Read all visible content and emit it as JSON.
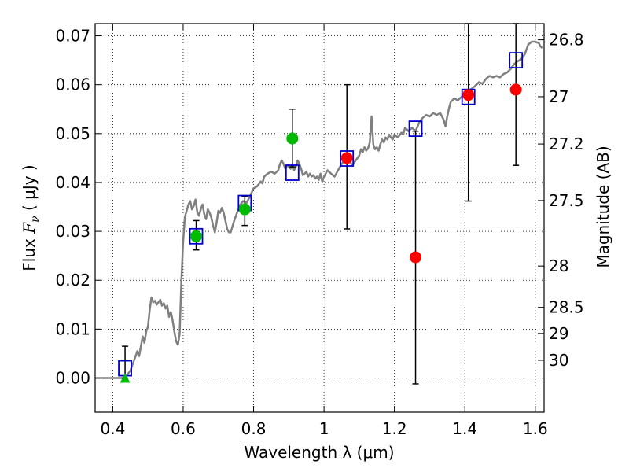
{
  "chart_data": {
    "type": "scatter",
    "title": "",
    "xlabel": "Wavelength  λ (μm)",
    "ylabel": {
      "prefix": "Flux  ",
      "symbol": "F",
      "subscript": "ν",
      "unit": "  ( μJy )"
    },
    "y2label": "Magnitude (AB)",
    "xlim": [
      0.35,
      1.625
    ],
    "ylim": [
      -0.007,
      0.0725
    ],
    "grid": true,
    "x_ticks": [
      0.4,
      0.6,
      0.8,
      1.0,
      1.2,
      1.4,
      1.6
    ],
    "x_tick_labels": [
      "0.4",
      "0.6",
      "0.8",
      "1",
      "1.2",
      "1.4",
      "1.6"
    ],
    "y_ticks": [
      0.0,
      0.01,
      0.02,
      0.03,
      0.04,
      0.05,
      0.06,
      0.07
    ],
    "y_tick_labels": [
      "0.00",
      "0.01",
      "0.02",
      "0.03",
      "0.04",
      "0.05",
      "0.06",
      "0.07"
    ],
    "y2_ticks": [
      {
        "label": "26.8",
        "mag": 26.8
      },
      {
        "label": "27",
        "mag": 27.0
      },
      {
        "label": "27.2",
        "mag": 27.2
      },
      {
        "label": "27.5",
        "mag": 27.5
      },
      {
        "label": "28",
        "mag": 28.0
      },
      {
        "label": "28.5",
        "mag": 28.5
      },
      {
        "label": "29",
        "mag": 29.0
      },
      {
        "label": "30",
        "mag": 30.0
      }
    ],
    "colors": {
      "model_sed": "#808080",
      "detections": "#ff0000",
      "detections_alt": "#00bb00",
      "model_bands": "#0000cc",
      "errorbars": "#000000",
      "grid": "#000000",
      "zero_line": "#555555"
    },
    "series": [
      {
        "type": "line",
        "points": [
          [
            0.35,
            0.0
          ],
          [
            0.43,
            0.0
          ],
          [
            0.44,
            0.0005
          ],
          [
            0.45,
            0.0015
          ],
          [
            0.46,
            0.0035
          ],
          [
            0.47,
            0.0055
          ],
          [
            0.475,
            0.0045
          ],
          [
            0.48,
            0.0065
          ],
          [
            0.485,
            0.0085
          ],
          [
            0.49,
            0.0072
          ],
          [
            0.495,
            0.0095
          ],
          [
            0.5,
            0.0105
          ],
          [
            0.505,
            0.014
          ],
          [
            0.51,
            0.0165
          ],
          [
            0.515,
            0.0155
          ],
          [
            0.52,
            0.0158
          ],
          [
            0.525,
            0.015
          ],
          [
            0.53,
            0.0155
          ],
          [
            0.535,
            0.016
          ],
          [
            0.54,
            0.0148
          ],
          [
            0.545,
            0.0153
          ],
          [
            0.55,
            0.0142
          ],
          [
            0.555,
            0.0148
          ],
          [
            0.56,
            0.0125
          ],
          [
            0.565,
            0.0135
          ],
          [
            0.57,
            0.0118
          ],
          [
            0.575,
            0.0095
          ],
          [
            0.58,
            0.0075
          ],
          [
            0.585,
            0.0068
          ],
          [
            0.59,
            0.009
          ],
          [
            0.595,
            0.02
          ],
          [
            0.6,
            0.028
          ],
          [
            0.605,
            0.033
          ],
          [
            0.61,
            0.0342
          ],
          [
            0.615,
            0.0355
          ],
          [
            0.62,
            0.0362
          ],
          [
            0.625,
            0.0345
          ],
          [
            0.63,
            0.0352
          ],
          [
            0.635,
            0.0365
          ],
          [
            0.64,
            0.034
          ],
          [
            0.645,
            0.0332
          ],
          [
            0.65,
            0.0345
          ],
          [
            0.655,
            0.0355
          ],
          [
            0.66,
            0.0335
          ],
          [
            0.665,
            0.0325
          ],
          [
            0.67,
            0.0345
          ],
          [
            0.675,
            0.0338
          ],
          [
            0.68,
            0.0328
          ],
          [
            0.685,
            0.0312
          ],
          [
            0.69,
            0.0298
          ],
          [
            0.695,
            0.0318
          ],
          [
            0.7,
            0.0342
          ],
          [
            0.705,
            0.0338
          ],
          [
            0.71,
            0.0348
          ],
          [
            0.715,
            0.0338
          ],
          [
            0.72,
            0.0322
          ],
          [
            0.725,
            0.0305
          ],
          [
            0.73,
            0.0298
          ],
          [
            0.735,
            0.0298
          ],
          [
            0.74,
            0.031
          ],
          [
            0.745,
            0.0322
          ],
          [
            0.75,
            0.0332
          ],
          [
            0.76,
            0.0352
          ],
          [
            0.77,
            0.0362
          ],
          [
            0.78,
            0.0358
          ],
          [
            0.79,
            0.0372
          ],
          [
            0.8,
            0.0388
          ],
          [
            0.81,
            0.0392
          ],
          [
            0.82,
            0.0402
          ],
          [
            0.825,
            0.0398
          ],
          [
            0.83,
            0.0412
          ],
          [
            0.84,
            0.0418
          ],
          [
            0.85,
            0.0422
          ],
          [
            0.86,
            0.0418
          ],
          [
            0.87,
            0.0425
          ],
          [
            0.875,
            0.0438
          ],
          [
            0.88,
            0.0445
          ],
          [
            0.885,
            0.0438
          ],
          [
            0.89,
            0.0428
          ],
          [
            0.895,
            0.0435
          ],
          [
            0.9,
            0.0432
          ],
          [
            0.905,
            0.0428
          ],
          [
            0.91,
            0.0438
          ],
          [
            0.915,
            0.0425
          ],
          [
            0.92,
            0.0432
          ],
          [
            0.925,
            0.0445
          ],
          [
            0.93,
            0.0438
          ],
          [
            0.935,
            0.0428
          ],
          [
            0.94,
            0.0415
          ],
          [
            0.945,
            0.0418
          ],
          [
            0.95,
            0.0422
          ],
          [
            0.955,
            0.0412
          ],
          [
            0.96,
            0.0418
          ],
          [
            0.965,
            0.0412
          ],
          [
            0.97,
            0.0415
          ],
          [
            0.975,
            0.0408
          ],
          [
            0.98,
            0.0412
          ],
          [
            0.985,
            0.0405
          ],
          [
            0.99,
            0.0418
          ],
          [
            0.995,
            0.0402
          ],
          [
            1.0,
            0.0412
          ],
          [
            1.01,
            0.0425
          ],
          [
            1.02,
            0.0418
          ],
          [
            1.03,
            0.0412
          ],
          [
            1.04,
            0.0425
          ],
          [
            1.05,
            0.0438
          ],
          [
            1.06,
            0.0445
          ],
          [
            1.07,
            0.0448
          ],
          [
            1.08,
            0.0435
          ],
          [
            1.09,
            0.0445
          ],
          [
            1.1,
            0.0455
          ],
          [
            1.105,
            0.0468
          ],
          [
            1.11,
            0.0462
          ],
          [
            1.115,
            0.0472
          ],
          [
            1.12,
            0.0465
          ],
          [
            1.125,
            0.047
          ],
          [
            1.13,
            0.0482
          ],
          [
            1.135,
            0.0535
          ],
          [
            1.14,
            0.0478
          ],
          [
            1.145,
            0.0468
          ],
          [
            1.15,
            0.0472
          ],
          [
            1.155,
            0.0465
          ],
          [
            1.16,
            0.0478
          ],
          [
            1.165,
            0.0488
          ],
          [
            1.17,
            0.0482
          ],
          [
            1.175,
            0.0492
          ],
          [
            1.18,
            0.0488
          ],
          [
            1.185,
            0.0498
          ],
          [
            1.19,
            0.0492
          ],
          [
            1.195,
            0.0488
          ],
          [
            1.2,
            0.0498
          ],
          [
            1.21,
            0.0492
          ],
          [
            1.22,
            0.0502
          ],
          [
            1.225,
            0.0498
          ],
          [
            1.23,
            0.0512
          ],
          [
            1.24,
            0.0505
          ],
          [
            1.25,
            0.0512
          ],
          [
            1.26,
            0.0505
          ],
          [
            1.27,
            0.0522
          ],
          [
            1.28,
            0.0532
          ],
          [
            1.29,
            0.0538
          ],
          [
            1.3,
            0.0535
          ],
          [
            1.31,
            0.0542
          ],
          [
            1.32,
            0.0538
          ],
          [
            1.33,
            0.0542
          ],
          [
            1.335,
            0.0535
          ],
          [
            1.34,
            0.0528
          ],
          [
            1.345,
            0.0515
          ],
          [
            1.35,
            0.0535
          ],
          [
            1.355,
            0.0552
          ],
          [
            1.36,
            0.0565
          ],
          [
            1.37,
            0.0572
          ],
          [
            1.38,
            0.0568
          ],
          [
            1.39,
            0.0575
          ],
          [
            1.4,
            0.0582
          ],
          [
            1.41,
            0.0588
          ],
          [
            1.42,
            0.0592
          ],
          [
            1.43,
            0.0598
          ],
          [
            1.44,
            0.0605
          ],
          [
            1.45,
            0.0602
          ],
          [
            1.46,
            0.0612
          ],
          [
            1.47,
            0.0618
          ],
          [
            1.48,
            0.0615
          ],
          [
            1.49,
            0.0618
          ],
          [
            1.5,
            0.0615
          ],
          [
            1.51,
            0.0622
          ],
          [
            1.52,
            0.0625
          ],
          [
            1.53,
            0.0632
          ],
          [
            1.54,
            0.0642
          ],
          [
            1.55,
            0.0648
          ],
          [
            1.56,
            0.0652
          ],
          [
            1.57,
            0.0662
          ],
          [
            1.58,
            0.0682
          ],
          [
            1.59,
            0.0688
          ],
          [
            1.6,
            0.0688
          ],
          [
            1.61,
            0.0685
          ],
          [
            1.615,
            0.0678
          ],
          [
            1.62,
            0.0675
          ]
        ]
      },
      {
        "type": "errorbar",
        "points": [
          {
            "x": 0.435,
            "lo": 0.0,
            "hi": 0.0065
          },
          {
            "x": 0.637,
            "lo": 0.0262,
            "hi": 0.0322
          },
          {
            "x": 0.775,
            "lo": 0.0312,
            "hi": 0.0372
          },
          {
            "x": 0.91,
            "lo": 0.0432,
            "hi": 0.055
          },
          {
            "x": 1.065,
            "lo": 0.0305,
            "hi": 0.06
          },
          {
            "x": 1.26,
            "lo": -0.0012,
            "hi": 0.0505
          },
          {
            "x": 1.41,
            "lo": 0.0362,
            "hi": 0.0725
          },
          {
            "x": 1.545,
            "lo": 0.0435,
            "hi": 0.0725
          }
        ]
      },
      {
        "type": "scatter",
        "marker": "square",
        "points": [
          [
            0.435,
            0.002
          ],
          [
            0.637,
            0.029
          ],
          [
            0.775,
            0.0358
          ],
          [
            0.91,
            0.042
          ],
          [
            1.065,
            0.0449
          ],
          [
            1.26,
            0.051
          ],
          [
            1.41,
            0.0575
          ],
          [
            1.545,
            0.065
          ]
        ]
      },
      {
        "type": "scatter",
        "marker": "circle",
        "points": [
          {
            "x": 0.637,
            "y": 0.029,
            "color": "green"
          },
          {
            "x": 0.775,
            "y": 0.0345,
            "color": "green"
          },
          {
            "x": 0.91,
            "y": 0.049,
            "color": "green"
          },
          {
            "x": 1.065,
            "y": 0.045,
            "color": "red"
          },
          {
            "x": 1.26,
            "y": 0.0247,
            "color": "red"
          },
          {
            "x": 1.41,
            "y": 0.0579,
            "color": "red"
          },
          {
            "x": 1.545,
            "y": 0.059,
            "color": "red"
          }
        ]
      },
      {
        "type": "scatter",
        "marker": "triangle",
        "points": [
          {
            "x": 0.435,
            "y": 0.0,
            "color": "green"
          }
        ]
      }
    ]
  }
}
